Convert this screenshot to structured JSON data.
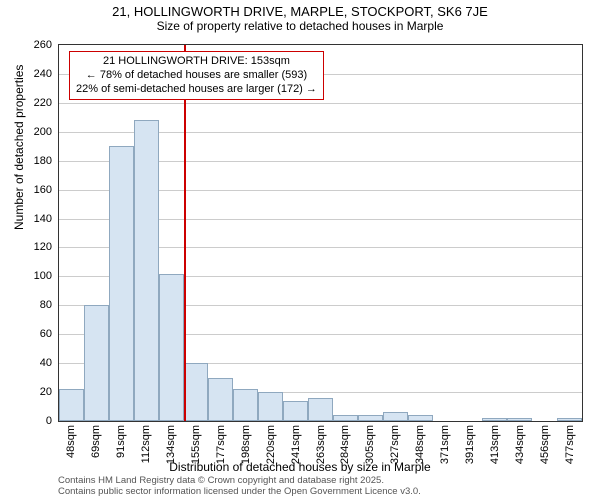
{
  "title": {
    "main": "21, HOLLINGWORTH DRIVE, MARPLE, STOCKPORT, SK6 7JE",
    "sub": "Size of property relative to detached houses in Marple"
  },
  "chart": {
    "type": "histogram",
    "ylabel": "Number of detached properties",
    "xlabel": "Distribution of detached houses by size in Marple",
    "ylim": [
      0,
      260
    ],
    "ytick_step": 20,
    "yticks": [
      0,
      20,
      40,
      60,
      80,
      100,
      120,
      140,
      160,
      180,
      200,
      220,
      240,
      260
    ],
    "categories": [
      "48sqm",
      "69sqm",
      "91sqm",
      "112sqm",
      "134sqm",
      "155sqm",
      "177sqm",
      "198sqm",
      "220sqm",
      "241sqm",
      "263sqm",
      "284sqm",
      "305sqm",
      "327sqm",
      "348sqm",
      "371sqm",
      "391sqm",
      "413sqm",
      "434sqm",
      "456sqm",
      "477sqm"
    ],
    "values": [
      22,
      80,
      190,
      208,
      102,
      40,
      30,
      22,
      20,
      14,
      16,
      4,
      4,
      6,
      4,
      0,
      0,
      2,
      2,
      0,
      2
    ],
    "bar_fill": "#d6e4f2",
    "bar_stroke": "#8fa8bf",
    "grid_color": "#cccccc",
    "background": "#ffffff",
    "axis_color": "#333333",
    "bar_width_ratio": 1.0,
    "marker": {
      "color": "#cc0000",
      "category_index": 5,
      "line1": "21 HOLLINGWORTH DRIVE: 153sqm",
      "line2": "← 78% of detached houses are smaller (593)",
      "line3": "22% of semi-detached houses are larger (172) →"
    },
    "label_fontsize": 12,
    "tick_fontsize": 11
  },
  "credits": {
    "line1": "Contains HM Land Registry data © Crown copyright and database right 2025.",
    "line2": "Contains public sector information licensed under the Open Government Licence v3.0."
  }
}
